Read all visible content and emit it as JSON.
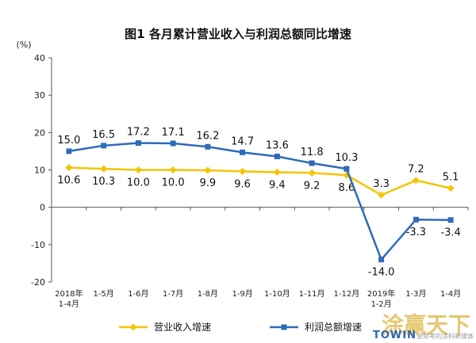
{
  "chart_data": {
    "type": "line",
    "title": "图1  各月累计营业收入与利润总额同比增速",
    "ylabel": "(%)",
    "ylim": [
      -20,
      40
    ],
    "yticks": [
      -20,
      -10,
      0,
      10,
      20,
      30,
      40
    ],
    "categories": [
      [
        "2018年",
        "1-4月"
      ],
      [
        "1-5月"
      ],
      [
        "1-6月"
      ],
      [
        "1-7月"
      ],
      [
        "1-8月"
      ],
      [
        "1-9月"
      ],
      [
        "1-10月"
      ],
      [
        "1-11月"
      ],
      [
        "1-12月"
      ],
      [
        "2019年",
        "1-2月"
      ],
      [
        "1-3月"
      ],
      [
        "1-4月"
      ]
    ],
    "series": [
      {
        "name": "营业收入增速",
        "color": "#f5c400",
        "marker": "diamond",
        "values": [
          10.6,
          10.3,
          10.0,
          10.0,
          9.9,
          9.6,
          9.4,
          9.2,
          8.6,
          3.3,
          7.2,
          5.1
        ],
        "labels": [
          "10.6",
          "10.3",
          "10.0",
          "10.0",
          "9.9",
          "9.6",
          "9.4",
          "9.2",
          "8.6",
          "3.3",
          "7.2",
          "5.1"
        ]
      },
      {
        "name": "利润总额增速",
        "color": "#2e6bb8",
        "marker": "square",
        "values": [
          15.0,
          16.5,
          17.2,
          17.1,
          16.2,
          14.7,
          13.6,
          11.8,
          10.3,
          -14.0,
          -3.3,
          -3.4
        ],
        "labels": [
          "15.0",
          "16.5",
          "17.2",
          "17.1",
          "16.2",
          "14.7",
          "13.6",
          "11.8",
          "10.3",
          "-14.0",
          "-3.3",
          "-3.4"
        ]
      }
    ],
    "legend_position": "bottom",
    "grid": false
  },
  "watermark": {
    "main": "涂赢天下",
    "brand": "TOWIN",
    "sub": "会思考的涂料新媒体"
  }
}
